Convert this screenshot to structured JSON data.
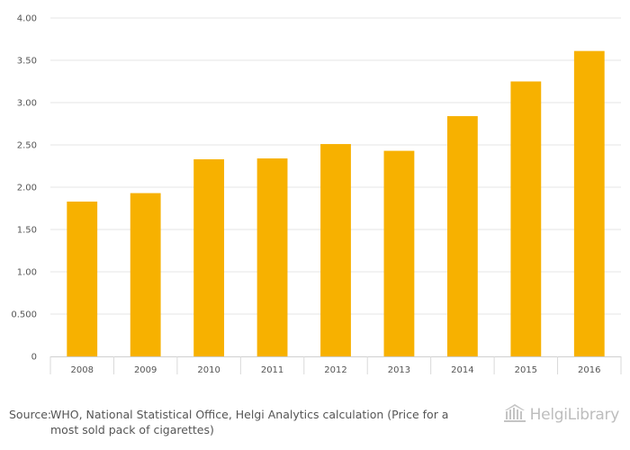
{
  "chart_data": {
    "type": "bar",
    "categories": [
      "2008",
      "2009",
      "2010",
      "2011",
      "2012",
      "2013",
      "2014",
      "2015",
      "2016"
    ],
    "values": [
      1.83,
      1.93,
      2.33,
      2.34,
      2.51,
      2.43,
      2.84,
      3.25,
      3.61
    ],
    "ylim": [
      0,
      4
    ],
    "y_ticks": [
      0,
      0.5,
      1,
      1.5,
      2,
      2.5,
      3,
      3.5,
      4
    ],
    "y_tick_labels": [
      "0",
      "0.500",
      "1.00",
      "1.50",
      "2.00",
      "2.50",
      "3.00",
      "3.50",
      "4.00"
    ],
    "bar_color": "#f7b100",
    "grid": true,
    "title": "",
    "xlabel": "",
    "ylabel": ""
  },
  "footer": {
    "source_label": "Source:",
    "source_text": "WHO, National Statistical Office, Helgi Analytics calculation (Price for a most sold pack of cigarettes)"
  },
  "brand": {
    "name": "HelgiLibrary",
    "icon": "library-building-icon"
  }
}
